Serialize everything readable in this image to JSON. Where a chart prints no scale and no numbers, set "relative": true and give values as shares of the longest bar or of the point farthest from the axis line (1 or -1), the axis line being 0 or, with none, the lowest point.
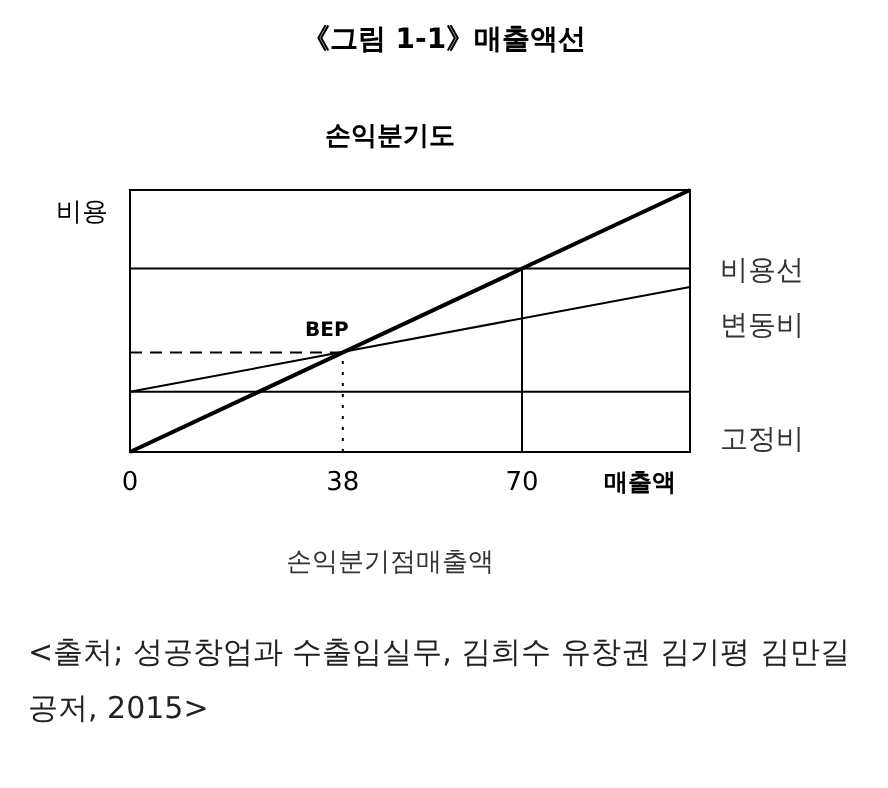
{
  "chart_data": {
    "type": "line",
    "title": "《그림 1-1》매출액선",
    "subtitle": "손익분기도",
    "xlabel": "매출액",
    "ylabel": "비용",
    "relative": true,
    "xlim": [
      0,
      100
    ],
    "xticks": [
      0,
      38,
      70
    ],
    "series": [
      {
        "x": [
          0,
          100
        ],
        "values": [
          0,
          1
        ],
        "color": "#000000"
      },
      {
        "name": "비용선",
        "x": [
          0,
          100
        ],
        "values": [
          0.23,
          0.63
        ],
        "color": "#000000"
      },
      {
        "x": [
          0,
          100
        ],
        "values": [
          0.23,
          0.23
        ],
        "color": "#000000"
      },
      {
        "x": [
          0,
          100
        ],
        "values": [
          0.7,
          0.7
        ],
        "color": "#000000"
      },
      {
        "x": [
          70,
          70
        ],
        "values": [
          0,
          0.7
        ],
        "color": "#000000"
      },
      {
        "x": [
          0,
          38
        ],
        "values": [
          0.38,
          0.38
        ],
        "color": "#000000",
        "line_style": "dashed"
      },
      {
        "x": [
          38,
          38
        ],
        "values": [
          0,
          0.38
        ],
        "color": "#000000",
        "line_style": "dotted"
      }
    ],
    "annotations": [
      {
        "text": "BEP",
        "x": 38,
        "y": 0.38
      },
      "변동비",
      "고정비",
      "손익분기점매출액",
      "<출처; 성공창업과 수출입실무, 김희수 유창권 김기평 김만길 공저, 2015>"
    ]
  }
}
